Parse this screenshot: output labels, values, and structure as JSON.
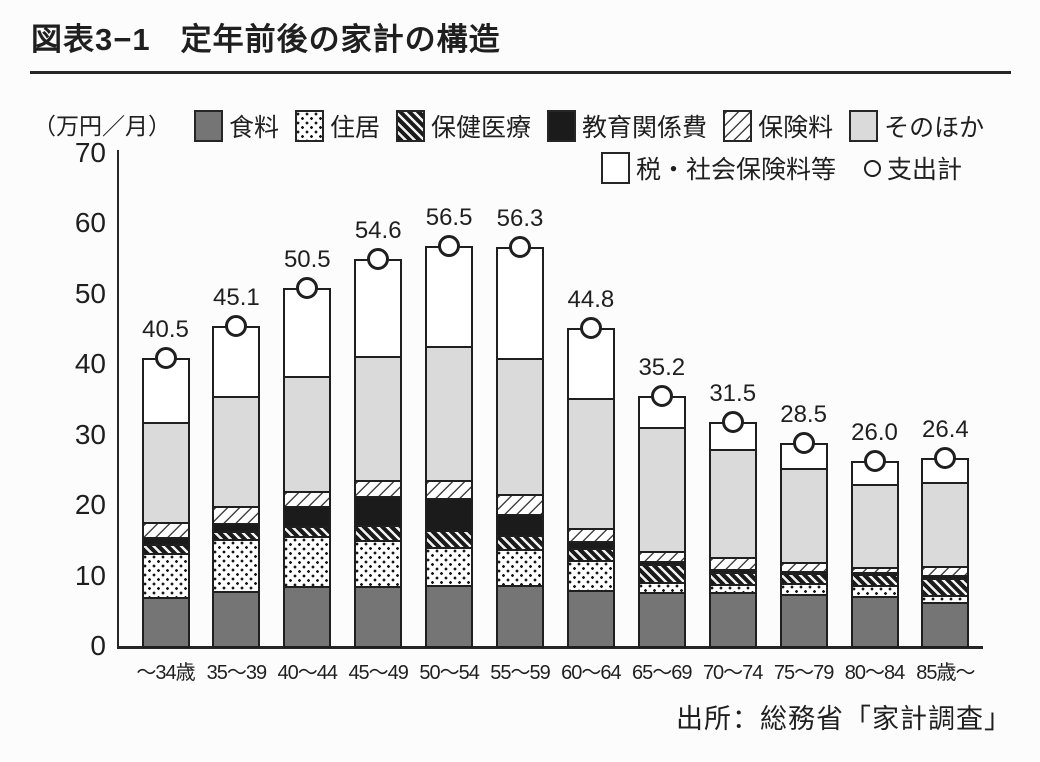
{
  "header": {
    "fig_label": "図表3−1",
    "title": "定年前後の家計の構造"
  },
  "chart_data": {
    "type": "bar",
    "stacked": true,
    "unit_label": "（万円／月）",
    "categories": [
      "～34歳",
      "35～39",
      "40～44",
      "45～49",
      "50～54",
      "55～59",
      "60～64",
      "65～69",
      "70～74",
      "75～79",
      "80～84",
      "85歳～"
    ],
    "totals": [
      40.5,
      45.1,
      50.5,
      54.6,
      56.5,
      56.3,
      44.8,
      35.2,
      31.5,
      28.5,
      26.0,
      26.4
    ],
    "total_labels": [
      "40.5",
      "45.1",
      "50.5",
      "54.6",
      "56.5",
      "56.3",
      "44.8",
      "35.2",
      "31.5",
      "28.5",
      "26.0",
      "26.4"
    ],
    "series": [
      {
        "name": "食料",
        "pattern": "solid-dark",
        "values": [
          6.9,
          7.8,
          8.5,
          8.5,
          8.7,
          8.7,
          8.0,
          7.7,
          7.6,
          7.4,
          7.1,
          6.3
        ]
      },
      {
        "name": "住居",
        "pattern": "dots",
        "values": [
          6.3,
          7.4,
          7.1,
          6.6,
          5.3,
          5.0,
          4.2,
          1.4,
          1.2,
          1.5,
          1.5,
          0.9
        ]
      },
      {
        "name": "保健医療",
        "pattern": "hatch-dense",
        "values": [
          1.3,
          1.1,
          1.4,
          2.1,
          2.5,
          2.0,
          1.7,
          2.5,
          1.7,
          1.4,
          1.6,
          2.5
        ]
      },
      {
        "name": "教育関係費",
        "pattern": "solid-black",
        "values": [
          1.0,
          1.2,
          2.8,
          4.1,
          4.5,
          3.0,
          1.0,
          0.4,
          0.4,
          0.4,
          0.3,
          0.3
        ]
      },
      {
        "name": "保険料",
        "pattern": "hatch-light",
        "values": [
          2.1,
          2.3,
          2.2,
          2.3,
          2.6,
          2.8,
          1.9,
          1.5,
          1.7,
          1.2,
          0.7,
          1.4
        ]
      },
      {
        "name": "そのほか",
        "pattern": "solid-light",
        "values": [
          14.2,
          15.7,
          16.3,
          17.6,
          18.9,
          19.3,
          18.4,
          17.5,
          15.4,
          13.4,
          11.8,
          11.8
        ]
      },
      {
        "name": "税・社会保険料等",
        "pattern": "white",
        "values": [
          8.7,
          9.6,
          12.2,
          13.4,
          14.0,
          15.5,
          9.6,
          4.2,
          3.5,
          3.2,
          3.0,
          3.2
        ]
      }
    ],
    "marker_legend": {
      "name": "支出計",
      "symbol": "circle"
    },
    "ylim": [
      0,
      70
    ],
    "yticks": [
      0,
      10,
      20,
      30,
      40,
      50,
      60,
      70
    ],
    "legend_position": "top",
    "grid": false,
    "source": "出所：総務省「家計調査」"
  },
  "colors": {
    "food_gray": "#757575",
    "other_gray": "#dadada",
    "education_black": "#1b1b1b",
    "ink": "#1f1f1f",
    "background": "#fcfcfc"
  }
}
